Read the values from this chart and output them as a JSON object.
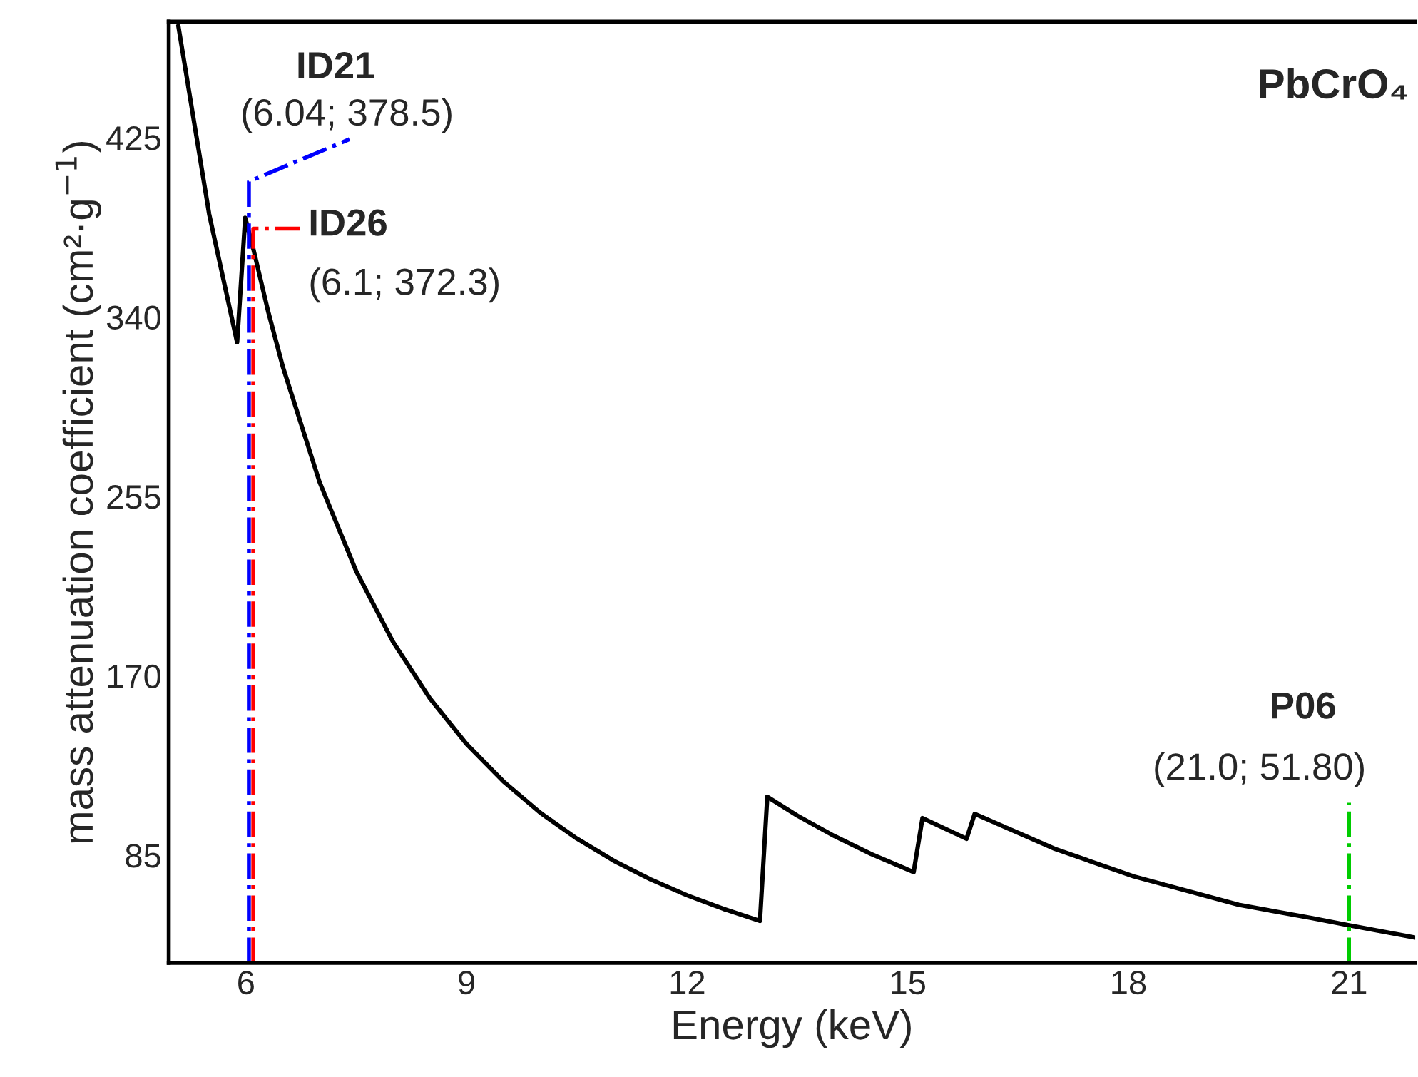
{
  "chart_data": {
    "type": "line",
    "xlabel": "Energy (keV)",
    "ylabel": "mass attenuation coefficient (cm²·g$^{−1}$)",
    "series": [
      {
        "color": "#000000",
        "x": [
          5.08,
          5.5,
          5.88,
          5.99,
          6.1,
          6.3,
          6.5,
          7.0,
          7.5,
          8.0,
          8.5,
          9.0,
          9.5,
          10.0,
          10.5,
          11.0,
          11.5,
          12.0,
          12.5,
          12.99,
          13.09,
          13.5,
          14.0,
          14.5,
          15.08,
          15.2,
          15.8,
          15.91,
          17.0,
          18.07,
          19.5,
          20.5,
          21.0,
          21.9
        ],
        "values": [
          478,
          388.7,
          328,
          387,
          372.3,
          342.9,
          316.6,
          261.9,
          219.5,
          186.1,
          159.4,
          137.7,
          120.0,
          105.2,
          92.9,
          82.4,
          73.6,
          66.0,
          59.5,
          53.9,
          112.7,
          103.7,
          94.1,
          85.6,
          77,
          102.6,
          92.8,
          104.6,
          88.0,
          75,
          61.5,
          55.2,
          51.8,
          46
        ]
      }
    ],
    "xlim": [
      4.95,
      21.9
    ],
    "xticks": [
      6,
      9,
      12,
      15,
      18,
      21
    ],
    "ylim": [
      34,
      480
    ],
    "yticks": [
      85,
      170,
      255,
      340,
      425
    ],
    "ref_lines": [
      {
        "axis": "x",
        "value": 6.04,
        "label": "ID21",
        "color": "#0000ff",
        "line_style": "dashdot"
      },
      {
        "axis": "x",
        "value": 6.1,
        "label": "ID26",
        "color": "#ff0000",
        "line_style": "dashdot"
      },
      {
        "axis": "x",
        "value": 21.0,
        "label": "P06",
        "color": "#00cc00",
        "line_style": "dashdot"
      }
    ],
    "annotations": [
      "(6.04; 378.5)",
      "(6.1; 372.3)",
      "(21.0; 51.80)",
      "PbCrO₄"
    ],
    "grid": false,
    "legend": false
  }
}
